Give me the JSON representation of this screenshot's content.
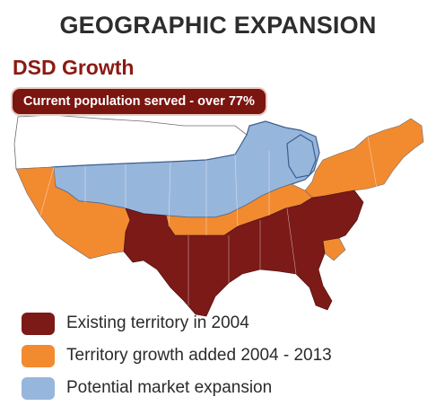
{
  "title": "GEOGRAPHIC EXPANSION",
  "subtitle": "DSD Growth",
  "banner": "Current population served - over 77%",
  "colors": {
    "existing": "#7b1a17",
    "growth": "#f28a30",
    "potential": "#97b6dc",
    "unserved": "#ffffff",
    "border": "#6d6d6d",
    "banner": "#7b1510",
    "subtitle": "#8b1a12"
  },
  "legend": [
    {
      "label": "Existing territory in 2004",
      "color": "#7b1a17"
    },
    {
      "label": "Territory growth added 2004 - 2013",
      "color": "#f28a30"
    },
    {
      "label": "Potential market expansion",
      "color": "#97b6dc"
    }
  ]
}
